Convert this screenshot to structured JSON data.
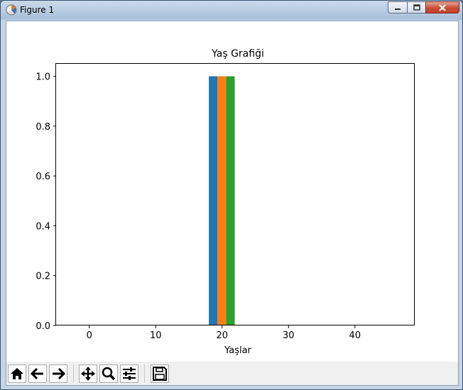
{
  "window": {
    "title": "Figure 1",
    "controls": [
      "minimize-icon",
      "maximize-icon",
      "close-icon"
    ]
  },
  "toolbar": {
    "buttons": [
      "home-icon",
      "back-arrow-icon",
      "forward-arrow-icon",
      "pan-icon",
      "zoom-icon",
      "configure-subplots-icon",
      "save-icon"
    ]
  },
  "chart_data": {
    "type": "bar",
    "title": "Yaş Grafiği",
    "xlabel": "Yaşlar",
    "ylabel": "",
    "xlim": [
      -5,
      49
    ],
    "ylim": [
      0,
      1.05
    ],
    "xticks": [
      "0",
      "10",
      "20",
      "30",
      "40"
    ],
    "yticks": [
      "0.0",
      "0.2",
      "0.4",
      "0.6",
      "0.8",
      "1.0"
    ],
    "grid": false,
    "bars": [
      {
        "x_start": 18,
        "x_end": 19.3,
        "value": 1.0,
        "color": "#1f77b4"
      },
      {
        "x_start": 19.3,
        "x_end": 20.6,
        "value": 1.0,
        "color": "#ff7f0e"
      },
      {
        "x_start": 20.6,
        "x_end": 21.9,
        "value": 1.0,
        "color": "#2ca02c"
      }
    ]
  }
}
